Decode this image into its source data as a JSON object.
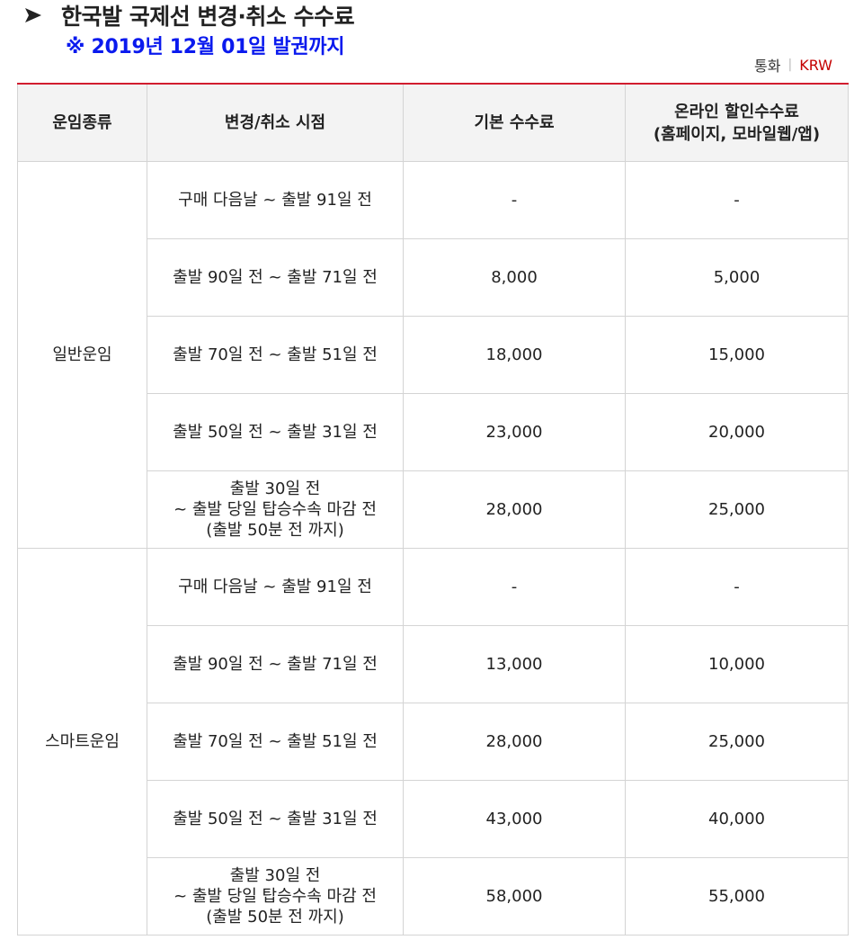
{
  "title": "한국발 국제선 변경·취소 수수료",
  "subtitle": "※ 2019년 12월 01일 발권까지",
  "currency": {
    "label": "통화",
    "separator": "|",
    "value": "KRW"
  },
  "table": {
    "headers": [
      "운임종류",
      "변경/취소 시점",
      "기본 수수료",
      "온라인 할인수수료\n(홈페이지, 모바일웹/앱)"
    ],
    "groups": [
      {
        "fare_type": "일반운임",
        "rows": [
          {
            "period": "구매 다음날 ~ 출발 91일 전",
            "base": "-",
            "online": "-"
          },
          {
            "period": "출발 90일 전 ~ 출발 71일 전",
            "base": "8,000",
            "online": "5,000"
          },
          {
            "period": "출발 70일 전 ~ 출발 51일 전",
            "base": "18,000",
            "online": "15,000"
          },
          {
            "period": "출발 50일 전 ~ 출발 31일 전",
            "base": "23,000",
            "online": "20,000"
          },
          {
            "period": "출발 30일 전\n~ 출발 당일 탑승수속 마감 전\n(출발 50분 전 까지)",
            "base": "28,000",
            "online": "25,000"
          }
        ]
      },
      {
        "fare_type": "스마트운임",
        "rows": [
          {
            "period": "구매 다음날 ~ 출발 91일 전",
            "base": "-",
            "online": "-"
          },
          {
            "period": "출발 90일 전 ~ 출발 71일 전",
            "base": "13,000",
            "online": "10,000"
          },
          {
            "period": "출발 70일 전 ~ 출발 51일 전",
            "base": "28,000",
            "online": "25,000"
          },
          {
            "period": "출발 50일 전 ~ 출발 31일 전",
            "base": "43,000",
            "online": "40,000"
          },
          {
            "period": "출발 30일 전\n~ 출발 당일 탑승수속 마감 전\n(출발 50분 전 까지)",
            "base": "58,000",
            "online": "55,000"
          }
        ]
      }
    ]
  }
}
